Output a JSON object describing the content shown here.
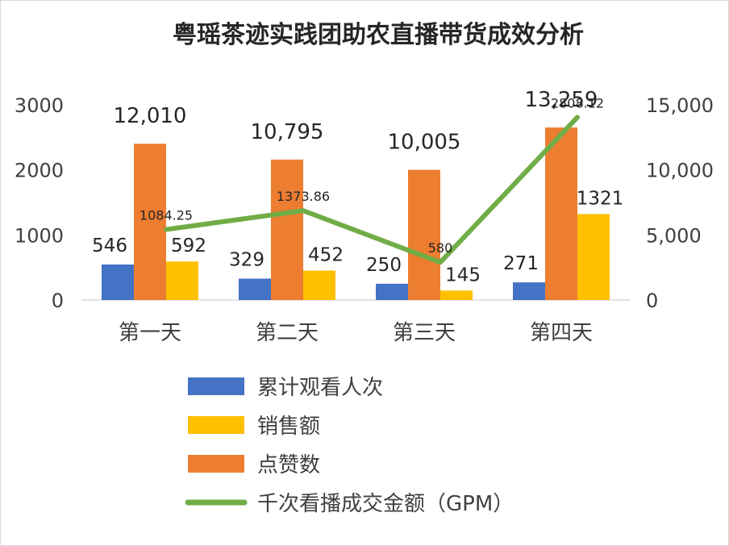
{
  "chart_data": {
    "type": "bar",
    "title": "粤瑶茶迹实践团助农直播带货成效分析",
    "categories": [
      "第一天",
      "第二天",
      "第三天",
      "第四天"
    ],
    "series": [
      {
        "name": "累计观看人次",
        "kind": "bar",
        "axis": "left",
        "color": "#4472c4",
        "values": [
          546,
          329,
          250,
          271
        ]
      },
      {
        "name": "点赞数",
        "kind": "bar",
        "axis": "right",
        "color": "#ed7d31",
        "values": [
          12010,
          10795,
          10005,
          13259
        ]
      },
      {
        "name": "销售额",
        "kind": "bar",
        "axis": "left",
        "color": "#ffc000",
        "values": [
          592,
          452,
          145,
          1321
        ]
      },
      {
        "name": "千次看播成交金额（GPM）",
        "kind": "line",
        "axis": "left",
        "color": "#70ad47",
        "values": [
          1084.25,
          1373.86,
          580,
          2808.12
        ]
      }
    ],
    "data_labels": {
      "累计观看人次": [
        "546",
        "329",
        "250",
        "271"
      ],
      "点赞数": [
        "12,010",
        "10,795",
        "10,005",
        "13,259"
      ],
      "销售额": [
        "592",
        "452",
        "145",
        "1321"
      ],
      "千次看播成交金额（GPM）": [
        "1084.25",
        "1373.86",
        "580",
        "2808.12"
      ]
    },
    "y_left": {
      "min": 0,
      "max": 3000,
      "ticks": [
        "0",
        "1000",
        "2000",
        "3000"
      ]
    },
    "y_right": {
      "min": 0,
      "max": 15000,
      "ticks": [
        "0",
        "5,000",
        "10,000",
        "15,000"
      ]
    },
    "legend_order": [
      "累计观看人次",
      "销售额",
      "点赞数",
      "千次看播成交金额（GPM）"
    ],
    "legend_position": "bottom",
    "grid": false
  }
}
